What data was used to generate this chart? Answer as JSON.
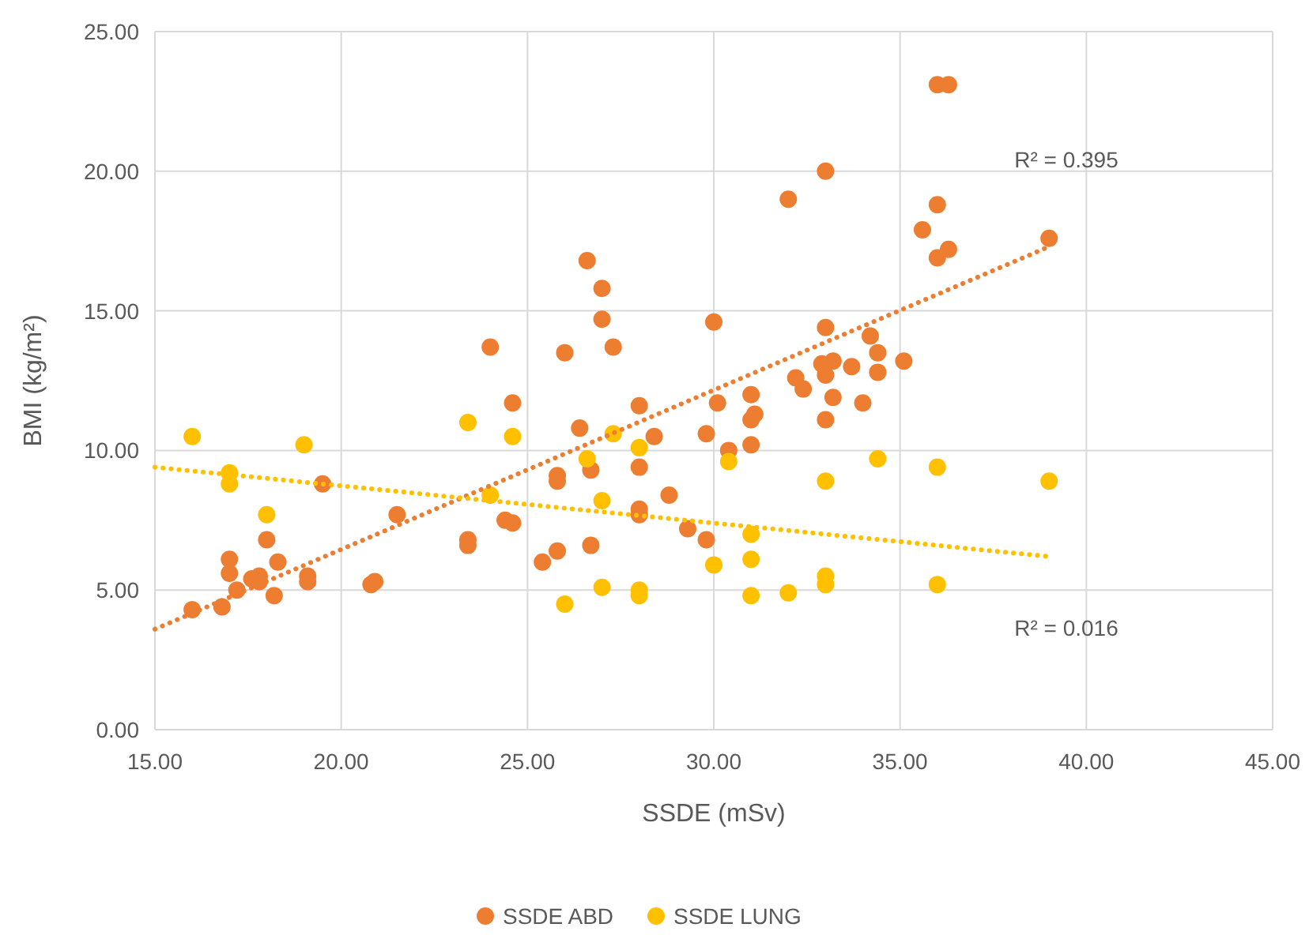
{
  "chart_data": {
    "type": "scatter",
    "xlabel": "SSDE (mSv)",
    "ylabel": "BMI (kg/m²)",
    "xlim": [
      15,
      45
    ],
    "xticks": [
      {
        "value": 15,
        "label": "15.00"
      },
      {
        "value": 20,
        "label": "20.00"
      },
      {
        "value": 25,
        "label": "25.00"
      },
      {
        "value": 30,
        "label": "30.00"
      },
      {
        "value": 35,
        "label": "35.00"
      },
      {
        "value": 40,
        "label": "40.00"
      },
      {
        "value": 45,
        "label": "45.00"
      }
    ],
    "ylim": [
      0,
      25
    ],
    "yticks": [
      {
        "value": 0,
        "label": "0.00"
      },
      {
        "value": 5,
        "label": "5.00"
      },
      {
        "value": 10,
        "label": "10.00"
      },
      {
        "value": 15,
        "label": "15.00"
      },
      {
        "value": 20,
        "label": "20.00"
      },
      {
        "value": 25,
        "label": "25.00"
      }
    ],
    "grid": true,
    "legend": "bottom",
    "series": [
      {
        "name": "SSDE ABD",
        "color": "#ed7d31",
        "marker": "circle",
        "x": [
          16.0,
          16.8,
          17.0,
          17.0,
          17.2,
          17.6,
          17.8,
          17.8,
          18.0,
          18.2,
          18.3,
          19.1,
          19.1,
          19.5,
          20.8,
          20.9,
          21.5,
          23.4,
          23.4,
          24.0,
          24.4,
          24.6,
          24.6,
          25.4,
          25.8,
          25.8,
          25.8,
          26.0,
          26.4,
          26.6,
          26.7,
          26.7,
          27.0,
          27.0,
          27.3,
          28.0,
          28.0,
          28.0,
          28.0,
          28.4,
          28.8,
          29.3,
          29.8,
          29.8,
          30.0,
          30.1,
          30.4,
          31.0,
          31.0,
          31.0,
          31.1,
          32.0,
          32.2,
          32.4,
          32.9,
          33.0,
          33.0,
          33.0,
          33.0,
          33.2,
          33.2,
          33.7,
          34.0,
          34.2,
          34.4,
          34.4,
          35.1,
          35.6,
          36.0,
          36.3,
          36.0,
          36.0,
          36.3,
          39.0
        ],
        "values": [
          4.3,
          4.4,
          6.1,
          5.6,
          5.0,
          5.4,
          5.5,
          5.3,
          6.8,
          4.8,
          6.0,
          5.5,
          5.3,
          8.8,
          5.2,
          5.3,
          7.7,
          6.8,
          6.6,
          13.7,
          7.5,
          7.4,
          11.7,
          6.0,
          9.1,
          8.9,
          6.4,
          13.5,
          10.8,
          16.8,
          9.3,
          6.6,
          15.8,
          14.7,
          13.7,
          11.6,
          9.4,
          7.9,
          7.7,
          10.5,
          8.4,
          7.2,
          10.6,
          6.8,
          14.6,
          11.7,
          10.0,
          12.0,
          11.1,
          10.2,
          11.3,
          19.0,
          12.6,
          12.2,
          13.1,
          20.0,
          14.4,
          12.7,
          11.1,
          13.2,
          11.9,
          13.0,
          11.7,
          14.1,
          13.5,
          12.8,
          13.2,
          17.9,
          23.1,
          23.1,
          18.8,
          16.9,
          17.2,
          17.6
        ]
      },
      {
        "name": "SSDE LUNG",
        "color": "#ffc000",
        "marker": "circle",
        "x": [
          16.0,
          17.0,
          17.0,
          18.0,
          19.0,
          23.4,
          24.0,
          24.6,
          26.0,
          26.6,
          27.0,
          27.0,
          27.3,
          28.0,
          28.0,
          28.0,
          30.0,
          30.4,
          31.0,
          31.0,
          31.0,
          32.0,
          33.0,
          33.0,
          33.0,
          34.4,
          36.0,
          36.0,
          39.0
        ],
        "values": [
          10.5,
          9.2,
          8.8,
          7.7,
          10.2,
          11.0,
          8.4,
          10.5,
          4.5,
          9.7,
          8.2,
          5.1,
          10.6,
          10.1,
          5.0,
          4.8,
          5.9,
          9.6,
          7.0,
          6.1,
          4.8,
          4.9,
          8.9,
          5.5,
          5.2,
          9.7,
          9.4,
          5.2,
          8.9
        ]
      },
      {
        "type": "line",
        "color": "#ed7d31",
        "marker": "none",
        "line_style": "dotted",
        "x": [
          15,
          39
        ],
        "values": [
          3.6,
          17.3
        ]
      },
      {
        "type": "line",
        "color": "#ffc000",
        "marker": "none",
        "line_style": "dotted",
        "x": [
          15,
          39
        ],
        "values": [
          9.4,
          6.2
        ]
      }
    ],
    "annotations": [
      "R² = 0.395",
      "R² = 0.016"
    ]
  }
}
